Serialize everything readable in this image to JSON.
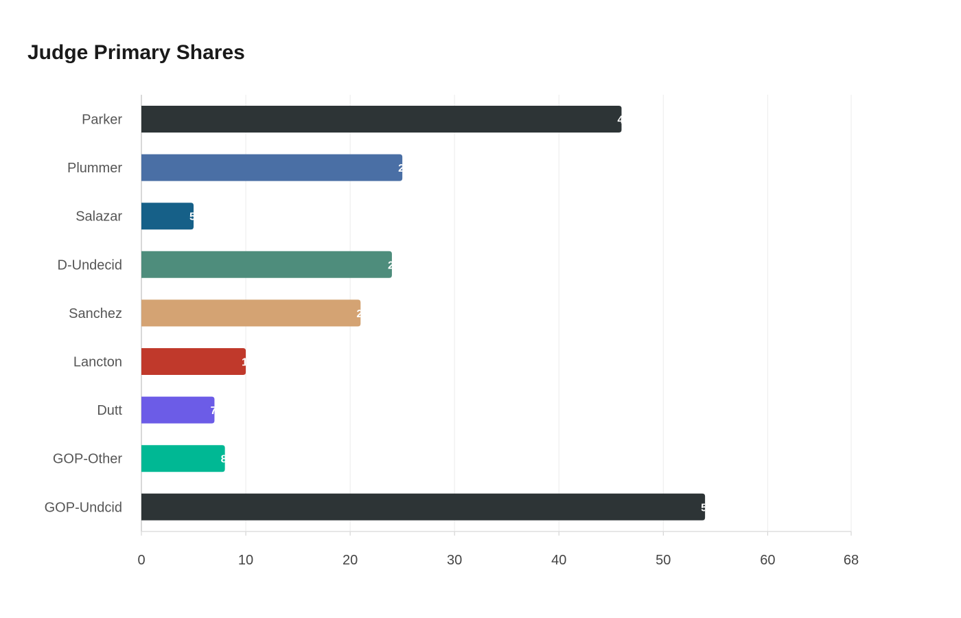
{
  "chart_data": {
    "type": "bar",
    "orientation": "horizontal",
    "title": "Judge Primary Shares",
    "xlabel": "",
    "ylabel": "",
    "categories": [
      "Parker",
      "Plummer",
      "Salazar",
      "D-Undecid",
      "Sanchez",
      "Lancton",
      "Dutt",
      "GOP-Other",
      "GOP-Undcid"
    ],
    "values": [
      46,
      25,
      5,
      24,
      21,
      10,
      7,
      8,
      54
    ],
    "colors": [
      "#2d3436",
      "#4a6fa5",
      "#166088",
      "#4e8d7c",
      "#d4a373",
      "#c0392b",
      "#6c5ce7",
      "#00b894",
      "#2d3436"
    ],
    "xlim": [
      0,
      68
    ],
    "xticks": [
      0,
      10,
      20,
      30,
      40,
      50,
      60,
      68
    ],
    "grid": true,
    "legend": "none"
  }
}
